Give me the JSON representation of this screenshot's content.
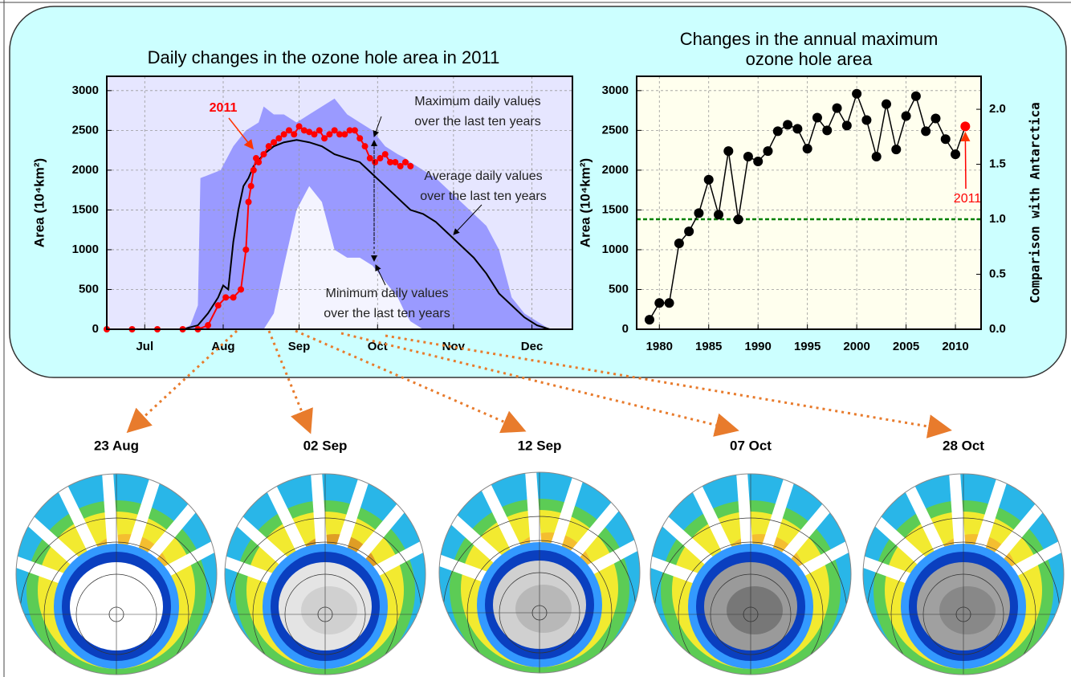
{
  "chart_data": [
    {
      "type": "line",
      "title": "Daily changes in the ozone hole area in 2011",
      "ylabel": "Area (10⁴km²)",
      "xlim": [
        0,
        184
      ],
      "xticks": [
        {
          "value": 15,
          "label": "Jul"
        },
        {
          "value": 46,
          "label": "Aug"
        },
        {
          "value": 76,
          "label": "Sep"
        },
        {
          "value": 107,
          "label": "Oct"
        },
        {
          "value": 137,
          "label": "Nov"
        },
        {
          "value": 168,
          "label": "Dec"
        }
      ],
      "ylim": [
        0,
        3180
      ],
      "yticks": [
        0,
        500,
        1000,
        1500,
        2000,
        2500,
        3000
      ],
      "grid": true,
      "background": "#e6e6ff",
      "series": [
        {
          "style": "area",
          "color": "#9a9aff",
          "label": [
            "Maximum daily values",
            "over the last ten years"
          ],
          "x": [
            0,
            30,
            33,
            36,
            37,
            45,
            50,
            55,
            60,
            62,
            66,
            70,
            75,
            80,
            85,
            90,
            95,
            100,
            105,
            110,
            115,
            118,
            120,
            125,
            130,
            140,
            150,
            155,
            160,
            165,
            170,
            175,
            184
          ],
          "values": [
            0,
            0,
            50,
            300,
            1900,
            2000,
            2300,
            2500,
            2600,
            2800,
            2700,
            2700,
            2600,
            2700,
            2800,
            2900,
            2700,
            2600,
            2500,
            2300,
            2200,
            2150,
            2100,
            2000,
            1900,
            1600,
            1300,
            1000,
            400,
            200,
            100,
            0,
            0
          ]
        },
        {
          "style": "area",
          "color": "#f4f4ff",
          "label": [
            "Minimum daily values",
            "over the last ten years"
          ],
          "x": [
            0,
            30,
            33,
            36,
            37,
            45,
            50,
            55,
            60,
            62,
            66,
            70,
            75,
            80,
            85,
            90,
            95,
            100,
            105,
            110,
            115,
            118,
            120,
            125,
            130,
            140,
            150,
            155,
            160,
            165,
            170,
            175,
            184
          ],
          "values": [
            0,
            0,
            0,
            0,
            0,
            0,
            0,
            0,
            0,
            0,
            200,
            800,
            1500,
            1800,
            1600,
            1000,
            900,
            900,
            800,
            600,
            400,
            200,
            100,
            0,
            0,
            0,
            0,
            0,
            0,
            0,
            0,
            0,
            0
          ]
        },
        {
          "style": "line",
          "color": "#000000",
          "label": [
            "Average daily values",
            "over the last ten years"
          ],
          "x": [
            0,
            30,
            36,
            40,
            44,
            46,
            48,
            50,
            52,
            54,
            56,
            58,
            62,
            66,
            70,
            75,
            80,
            85,
            90,
            95,
            100,
            105,
            110,
            115,
            120,
            125,
            130,
            135,
            140,
            145,
            150,
            155,
            160,
            165,
            170,
            175,
            184
          ],
          "values": [
            0,
            0,
            50,
            200,
            400,
            550,
            500,
            1100,
            1500,
            1800,
            1900,
            2050,
            2200,
            2300,
            2350,
            2380,
            2350,
            2300,
            2200,
            2150,
            2100,
            1950,
            1800,
            1650,
            1500,
            1450,
            1350,
            1200,
            1050,
            900,
            700,
            450,
            300,
            150,
            50,
            0,
            0
          ]
        },
        {
          "style": "markers",
          "color": "#ff0000",
          "label": [
            "2011"
          ],
          "x": [
            0,
            10,
            20,
            30,
            36,
            40,
            44,
            47,
            50,
            53,
            55,
            56,
            57,
            58,
            59,
            60,
            62,
            64,
            66,
            68,
            70,
            72,
            74,
            76,
            78,
            80,
            82,
            84,
            86,
            88,
            90,
            92,
            94,
            96,
            98,
            100,
            102,
            104,
            106,
            108,
            110,
            112,
            114,
            116,
            118,
            120
          ],
          "values": [
            0,
            0,
            0,
            0,
            0,
            50,
            300,
            400,
            400,
            500,
            1000,
            1600,
            1800,
            2000,
            2150,
            2100,
            2200,
            2300,
            2350,
            2400,
            2450,
            2500,
            2450,
            2550,
            2500,
            2480,
            2450,
            2500,
            2400,
            2450,
            2500,
            2450,
            2450,
            2500,
            2500,
            2400,
            2300,
            2150,
            2100,
            2150,
            2200,
            2100,
            2100,
            2050,
            2100,
            2050
          ]
        }
      ]
    },
    {
      "type": "line",
      "title": [
        "Changes in the annual maximum",
        "ozone hole area"
      ],
      "ylabel": "Area (10⁴km²)",
      "y2label": "Comparison with Antarctica",
      "xlim": [
        1977.7,
        2012.6
      ],
      "xticks": [
        1980,
        1985,
        1990,
        1995,
        2000,
        2005,
        2010
      ],
      "ylim": [
        0,
        3180
      ],
      "yticks": [
        0,
        500,
        1000,
        1500,
        2000,
        2500,
        3000
      ],
      "y2lim": [
        0,
        2.3
      ],
      "y2ticks": [
        {
          "value": 0,
          "label": "0.0"
        },
        0.5,
        {
          "value": 1,
          "label": "1.0"
        },
        1.5,
        {
          "value": 2,
          "label": "2.0"
        }
      ],
      "grid": true,
      "background": "#ffffee",
      "color": "#000000",
      "highlight_color": "#ff0000",
      "annotation": "2011",
      "reference": {
        "axis": "y2",
        "value": 1,
        "color": "#008000"
      },
      "x": [
        1979,
        1980,
        1981,
        1982,
        1983,
        1984,
        1985,
        1986,
        1987,
        1988,
        1989,
        1990,
        1991,
        1992,
        1993,
        1994,
        1995,
        1996,
        1997,
        1998,
        1999,
        2000,
        2001,
        2002,
        2003,
        2004,
        2005,
        2006,
        2007,
        2008,
        2009,
        2010,
        2011
      ],
      "values": [
        120,
        330,
        330,
        1080,
        1230,
        1460,
        1880,
        1440,
        2240,
        1380,
        2170,
        2110,
        2240,
        2490,
        2570,
        2520,
        2270,
        2660,
        2500,
        2780,
        2560,
        2960,
        2630,
        2170,
        2830,
        2260,
        2680,
        2930,
        2490,
        2650,
        2390,
        2200,
        2550
      ]
    }
  ],
  "maps": {
    "labels": [
      "23 Aug",
      "02 Sep",
      "12 Sep",
      "07 Oct",
      "28 Oct"
    ]
  }
}
